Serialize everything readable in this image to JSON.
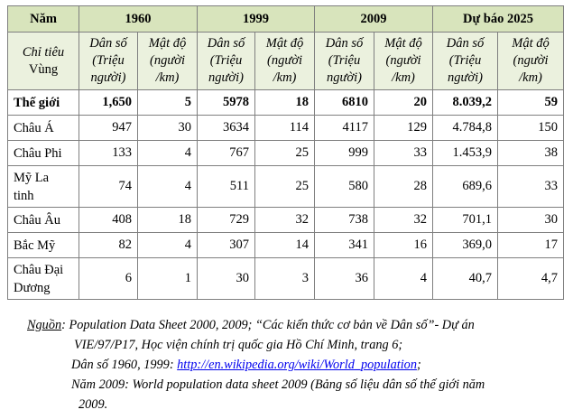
{
  "header": {
    "nam": "Năm",
    "years": [
      "1960",
      "1999",
      "2009",
      "Dự báo 2025"
    ],
    "chi_tieu": "Chỉ tiêu",
    "vung": "Vùng",
    "dan_so": [
      "Dân số",
      "(Triệu",
      "người)"
    ],
    "mat_do": [
      "Mật độ",
      "(người",
      "/km)"
    ]
  },
  "rows": [
    {
      "name": [
        "Thế giới"
      ],
      "values": [
        "1,650",
        "5",
        "5978",
        "18",
        "6810",
        "20",
        "8.039,2",
        "59"
      ]
    },
    {
      "name": [
        "Châu Á"
      ],
      "values": [
        "947",
        "30",
        "3634",
        "114",
        "4117",
        "129",
        "4.784,8",
        "150"
      ]
    },
    {
      "name": [
        "Châu Phi"
      ],
      "values": [
        "133",
        "4",
        "767",
        "25",
        "999",
        "33",
        "1.453,9",
        "38"
      ]
    },
    {
      "name": [
        "Mỹ La",
        "tinh"
      ],
      "values": [
        "74",
        "4",
        "511",
        "25",
        "580",
        "28",
        "689,6",
        "33"
      ]
    },
    {
      "name": [
        "Châu Âu"
      ],
      "values": [
        "408",
        "18",
        "729",
        "32",
        "738",
        "32",
        "701,1",
        "30"
      ]
    },
    {
      "name": [
        "Bắc Mỹ"
      ],
      "values": [
        "82",
        "4",
        "307",
        "14",
        "341",
        "16",
        "369,0",
        "17"
      ]
    },
    {
      "name": [
        "Châu Đại",
        "Dương"
      ],
      "values": [
        "6",
        "1",
        "30",
        "3",
        "36",
        "4",
        "40,7",
        "4,7"
      ]
    }
  ],
  "source": {
    "label": "Nguồn",
    "line1": ": Population Data Sheet 2000, 2009; “Các kiến thức cơ bản về Dân số”- Dự án",
    "line2": "VIE/97/P17, Học viện chính trị quốc gia Hồ Chí Minh, trang 6;",
    "line3_prefix": "Dân số 1960, 1999: ",
    "line3_link": "http://en.wikipedia.org/wiki/World_population",
    "line3_suffix": ";",
    "line4": "Năm 2009: World population data sheet 2009 (Bảng số liệu dân số thế giới năm",
    "line5": "2009."
  },
  "colors": {
    "header_bg": "#d8e4bc",
    "subheader_bg": "#ebf1de",
    "border": "#7f7f7f",
    "link": "#0000ee"
  }
}
